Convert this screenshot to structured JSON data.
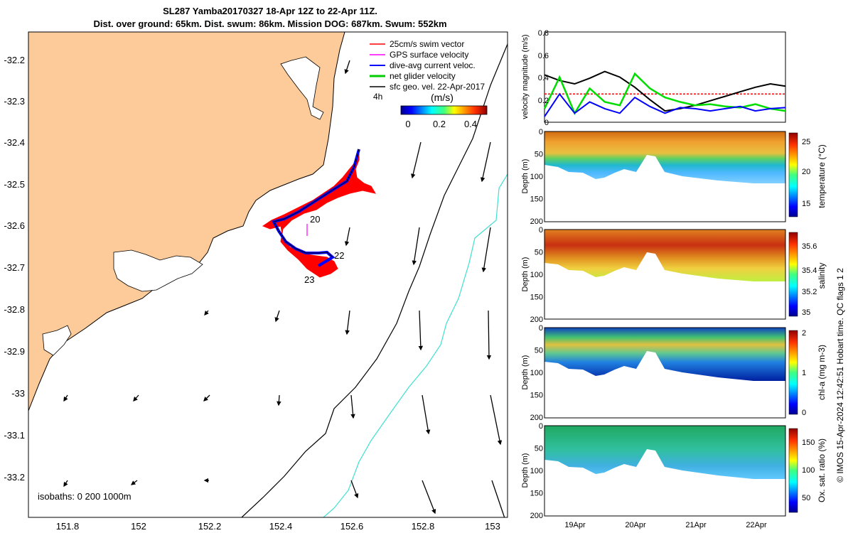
{
  "header": {
    "title_line1": "SL287 Yamba20170327 18-Apr 12Z to 22-Apr 11Z.",
    "title_line2": "Dist. over ground: 65km. Dist. swum: 86km. Mission DOG: 687km. Swum: 552km"
  },
  "map": {
    "x_ticks": [
      "151.8",
      "152",
      "152.2",
      "152.4",
      "152.6",
      "152.8",
      "153"
    ],
    "y_ticks": [
      "-32.2",
      "-32.3",
      "-32.4",
      "-32.5",
      "-32.6",
      "-32.7",
      "-32.8",
      "-32.9",
      "-33",
      "-33.1",
      "-33.2"
    ],
    "legend": [
      {
        "label": "25cm/s swim vector",
        "color": "#ff0000"
      },
      {
        "label": "GPS surface velocity",
        "color": "#ff00ff"
      },
      {
        "label": "dive-avg current veloc.",
        "color": "#0000ff"
      },
      {
        "label": "net glider velocity",
        "color": "#00cc00"
      },
      {
        "label": "sfc geo. vel. 22-Apr-2017",
        "color": "#000000"
      }
    ],
    "legend_extra": "4h",
    "colorbar_unit": "(m/s)",
    "colorbar_ticks": [
      "0",
      "0.2",
      "0.4"
    ],
    "day_labels": [
      "20",
      "22",
      "23"
    ],
    "isobaths_label": "isobaths: 0   200  1000m",
    "colors": {
      "land": "#fdca9a",
      "isobath_200": "#000000",
      "isobath_1000": "#40e0d0",
      "track": "#0000ff",
      "swim": "#ff0000"
    }
  },
  "right_panels": {
    "velocity": {
      "ylabel": "velocity magnitude (m/s)",
      "y_ticks": [
        "0",
        "0.2",
        "0.4",
        "0.6",
        "0.8"
      ]
    },
    "temperature": {
      "ylabel": "Depth (m)",
      "cbar_label": "temperature (°C)",
      "cbar_ticks": [
        "25",
        "20",
        "15"
      ]
    },
    "salinity": {
      "ylabel": "Depth (m)",
      "cbar_label": "salinity",
      "cbar_ticks": [
        "35.6",
        "35.4",
        "35.2",
        "35"
      ]
    },
    "chl": {
      "ylabel": "Depth (m)",
      "cbar_label": "chl-a (mg m-3)",
      "cbar_ticks": [
        "2",
        "1",
        "0"
      ]
    },
    "oxygen": {
      "ylabel": "Depth (m)",
      "cbar_label": "Ox. sat. ratio (%)",
      "cbar_ticks": [
        "150",
        "100",
        "50"
      ]
    },
    "depth_ticks": [
      "0",
      "50",
      "100",
      "150",
      "200"
    ],
    "x_ticks": [
      "19Apr",
      "20Apr",
      "21Apr",
      "22Apr"
    ],
    "side_note": "© IMOS 15-Apr-2024 12:42:51 Hobart time. QC flags 1  2"
  },
  "chart_data": [
    {
      "type": "line",
      "title": "",
      "xlabel": "",
      "ylabel": "velocity magnitude (m/s)",
      "x": [
        "18-Apr 12Z",
        "18-Apr 18Z",
        "19-Apr 0Z",
        "19-Apr 6Z",
        "19-Apr 12Z",
        "19-Apr 18Z",
        "20-Apr 0Z",
        "20-Apr 6Z",
        "20-Apr 12Z",
        "20-Apr 18Z",
        "21-Apr 0Z",
        "21-Apr 6Z",
        "21-Apr 12Z",
        "21-Apr 18Z",
        "22-Apr 0Z",
        "22-Apr 6Z",
        "22-Apr 11Z"
      ],
      "series": [
        {
          "values": [
            0.25,
            0.25,
            0.25,
            0.25,
            0.25,
            0.25,
            0.25,
            0.25,
            0.25,
            0.25,
            0.25,
            0.25,
            0.25,
            0.25,
            0.25,
            0.25,
            0.25
          ],
          "color": "#ff0000"
        },
        {
          "values": [
            0.42,
            0.37,
            0.34,
            0.39,
            0.45,
            0.4,
            0.31,
            0.2,
            0.1,
            0.12,
            0.15,
            0.19,
            0.23,
            0.27,
            0.31,
            0.34,
            0.32
          ],
          "color": "#000000"
        },
        {
          "values": [
            0.12,
            0.4,
            0.08,
            0.3,
            0.18,
            0.15,
            0.43,
            0.3,
            0.22,
            0.18,
            0.15,
            0.16,
            0.14,
            0.13,
            0.16,
            0.12,
            0.1
          ],
          "color": "#00dd00"
        },
        {
          "values": [
            0.05,
            0.25,
            0.08,
            0.18,
            0.12,
            0.08,
            0.22,
            0.14,
            0.08,
            0.13,
            0.12,
            0.1,
            0.12,
            0.14,
            0.1,
            0.12,
            0.13
          ],
          "color": "#0000ff"
        }
      ],
      "ylim": [
        0,
        0.8
      ]
    },
    {
      "type": "heatmap",
      "cbar_label": "temperature (°C)",
      "clim": [
        13,
        26
      ],
      "ylim": [
        200,
        0
      ]
    },
    {
      "type": "heatmap",
      "cbar_label": "salinity",
      "clim": [
        34.95,
        35.7
      ],
      "ylim": [
        200,
        0
      ]
    },
    {
      "type": "heatmap",
      "cbar_label": "chl-a (mg m-3)",
      "clim": [
        0,
        2
      ],
      "ylim": [
        200,
        0
      ]
    },
    {
      "type": "heatmap",
      "cbar_label": "Ox. sat. ratio (%)",
      "clim": [
        25,
        175
      ],
      "ylim": [
        200,
        0
      ]
    }
  ]
}
